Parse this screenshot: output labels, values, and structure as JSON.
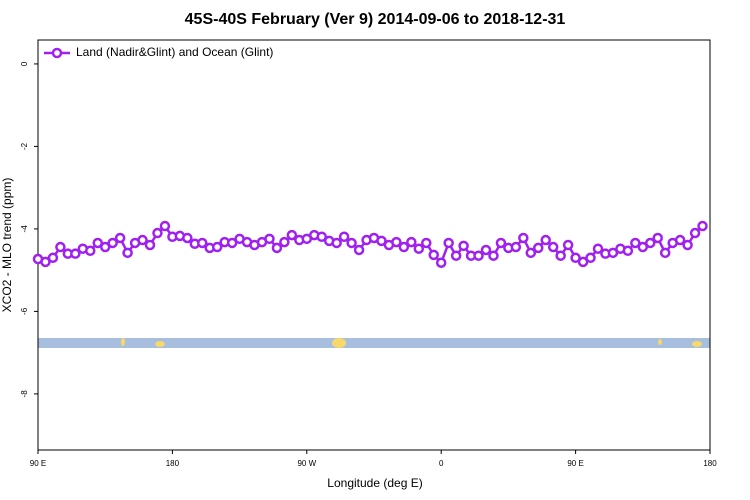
{
  "chart_data": {
    "type": "line",
    "title": "45S-40S February (Ver 9)   2014-09-06 to 2018-12-31",
    "x_label": "Longitude (deg E)",
    "y_label": "XCO2 - MLO trend (ppm)",
    "xlim": [
      90,
      540
    ],
    "xticks": [
      {
        "value": 90,
        "label": "90 E"
      },
      180,
      {
        "value": 270,
        "label": "90 W"
      },
      {
        "value": 360,
        "label": "0"
      },
      {
        "value": 450,
        "label": "90 E"
      },
      {
        "value": 540,
        "label": "180"
      }
    ],
    "ylim": [
      -9.36,
      0.58
    ],
    "yticks": [
      0,
      -2,
      -4,
      -6,
      -8
    ],
    "legend": "top-left",
    "series": [
      {
        "name": "Land (Nadir&Glint) and Ocean (Glint)",
        "color": "#a020f0",
        "x": [
          90,
          95,
          100,
          105,
          110,
          115,
          120,
          125,
          130,
          135,
          140,
          145,
          150,
          155,
          160,
          165,
          170,
          175,
          180,
          185,
          190,
          195,
          200,
          205,
          210,
          215,
          220,
          225,
          230,
          235,
          240,
          245,
          250,
          255,
          260,
          265,
          270,
          275,
          280,
          285,
          290,
          295,
          300,
          305,
          310,
          315,
          320,
          325,
          330,
          335,
          340,
          345,
          350,
          355,
          360,
          365,
          370,
          375,
          380,
          385,
          390,
          395,
          400,
          405,
          410,
          415,
          420,
          425,
          430,
          435,
          440,
          445,
          450,
          455,
          460,
          465,
          470,
          475,
          480,
          485,
          490,
          495,
          500,
          505,
          510,
          515,
          520,
          525,
          530,
          535
        ],
        "values": [
          -4.73,
          -4.8,
          -4.7,
          -4.44,
          -4.6,
          -4.6,
          -4.48,
          -4.53,
          -4.34,
          -4.44,
          -4.34,
          -4.22,
          -4.58,
          -4.34,
          -4.27,
          -4.39,
          -4.1,
          -3.93,
          -4.19,
          -4.17,
          -4.22,
          -4.36,
          -4.34,
          -4.46,
          -4.44,
          -4.32,
          -4.34,
          -4.24,
          -4.32,
          -4.39,
          -4.32,
          -4.24,
          -4.46,
          -4.32,
          -4.15,
          -4.27,
          -4.24,
          -4.15,
          -4.19,
          -4.29,
          -4.34,
          -4.19,
          -4.34,
          -4.51,
          -4.27,
          -4.22,
          -4.29,
          -4.39,
          -4.32,
          -4.44,
          -4.32,
          -4.48,
          -4.34,
          -4.63,
          -4.82,
          -4.34,
          -4.65,
          -4.41,
          -4.65,
          -4.65,
          -4.51,
          -4.65,
          -4.34,
          -4.46,
          -4.44,
          -4.22,
          -4.58,
          -4.46,
          -4.27,
          -4.44,
          -4.65,
          -4.39,
          -4.7,
          -4.8,
          -4.7,
          -4.48,
          -4.6,
          -4.58,
          -4.48,
          -4.53,
          -4.34,
          -4.44,
          -4.34,
          -4.22,
          -4.58,
          -4.34,
          -4.27,
          -4.39,
          -4.1,
          -3.93
        ]
      }
    ]
  }
}
